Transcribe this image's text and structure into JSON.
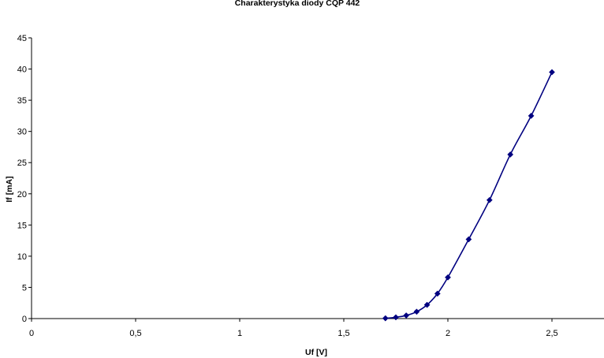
{
  "chart_data": {
    "type": "scatter",
    "title": "Charakterystyka diody CQP 442",
    "xlabel": "Uf [V]",
    "ylabel": "If [mA]",
    "xlim": [
      0,
      2.75
    ],
    "ylim": [
      0,
      45
    ],
    "x_ticks": [
      0,
      0.5,
      1,
      1.5,
      2,
      2.5
    ],
    "x_tick_labels": [
      "0",
      "0,5",
      "1",
      "1,5",
      "2",
      "2,5"
    ],
    "y_ticks": [
      0,
      5,
      10,
      15,
      20,
      25,
      30,
      35,
      40,
      45
    ],
    "y_tick_labels": [
      "0",
      "5",
      "10",
      "15",
      "20",
      "25",
      "30",
      "35",
      "40",
      "45"
    ],
    "grid": false,
    "legend": "none",
    "series": [
      {
        "color": "#000080",
        "marker": "diamond",
        "line": "smooth",
        "x": [
          1.7,
          1.75,
          1.8,
          1.85,
          1.9,
          1.95,
          2.0,
          2.1,
          2.2,
          2.3,
          2.4,
          2.5
        ],
        "y": [
          0.05,
          0.2,
          0.5,
          1.1,
          2.2,
          4.0,
          6.6,
          12.7,
          19.0,
          26.3,
          32.5,
          39.5
        ]
      }
    ]
  }
}
